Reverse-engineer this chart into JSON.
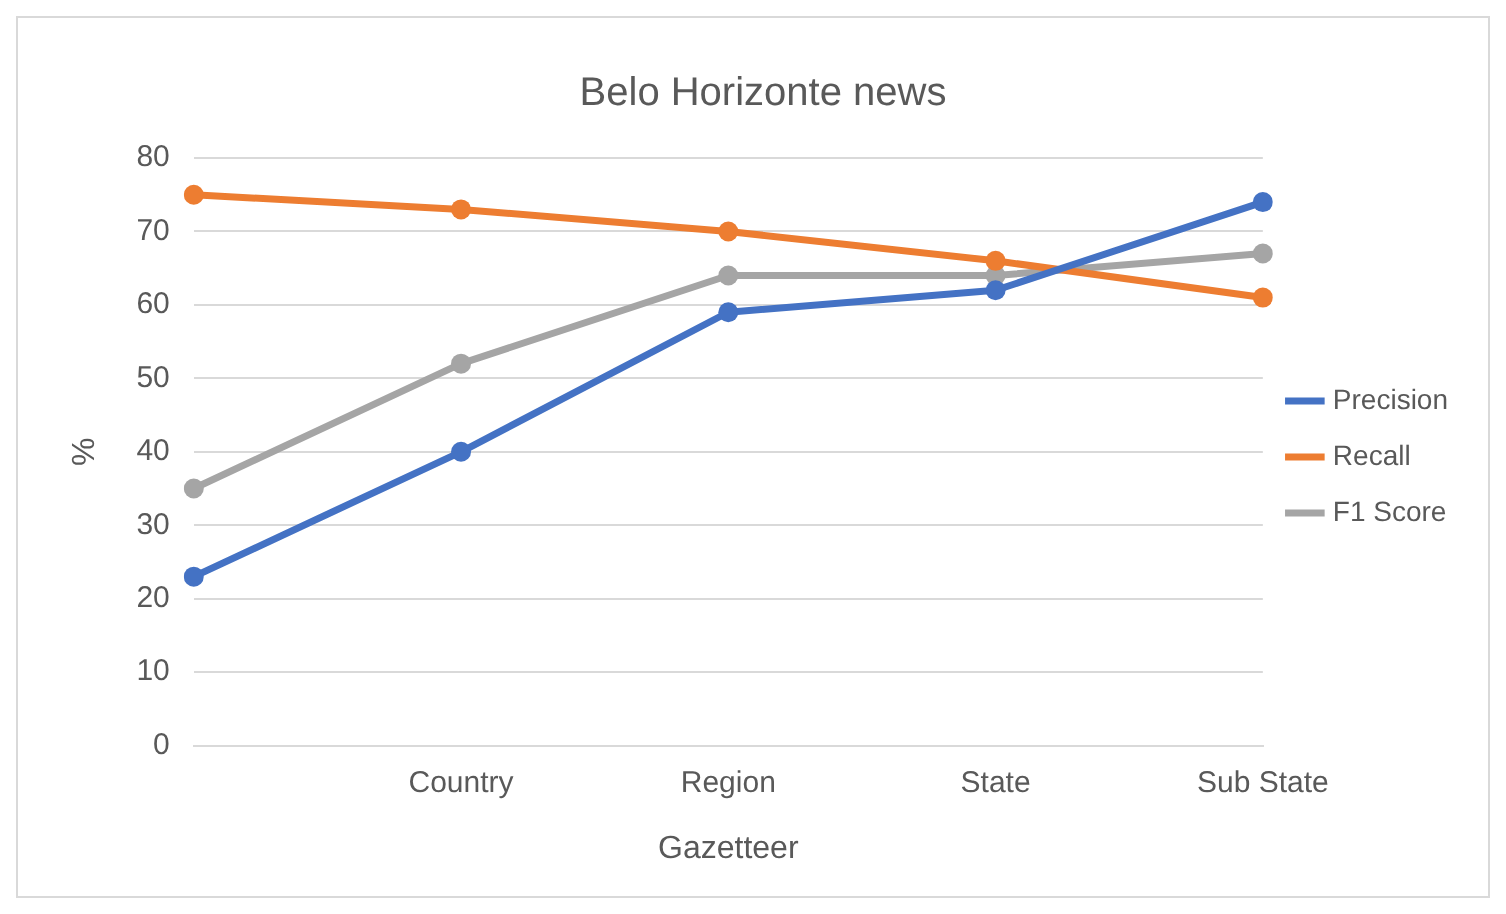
{
  "chart_data": {
    "type": "line",
    "title": "Belo Horizonte news",
    "xlabel": "Gazetteer",
    "ylabel": "%",
    "categories": [
      null,
      "Country",
      "Region",
      "State",
      "Sub State"
    ],
    "series": [
      {
        "name": "Precision",
        "color": "#4472c4",
        "values": [
          23,
          40,
          59,
          62,
          74
        ]
      },
      {
        "name": "Recall",
        "color": "#ed7d31",
        "values": [
          75,
          73,
          70,
          66,
          61
        ]
      },
      {
        "name": "F1 Score",
        "color": "#a5a5a5",
        "values": [
          35,
          52,
          64,
          64,
          67
        ]
      }
    ],
    "ylim": [
      0,
      80
    ],
    "yticks": [
      0,
      10,
      20,
      30,
      40,
      50,
      60,
      70,
      80
    ],
    "grid": "y",
    "legend": "right",
    "marker": "circle",
    "line_style": "solid"
  }
}
